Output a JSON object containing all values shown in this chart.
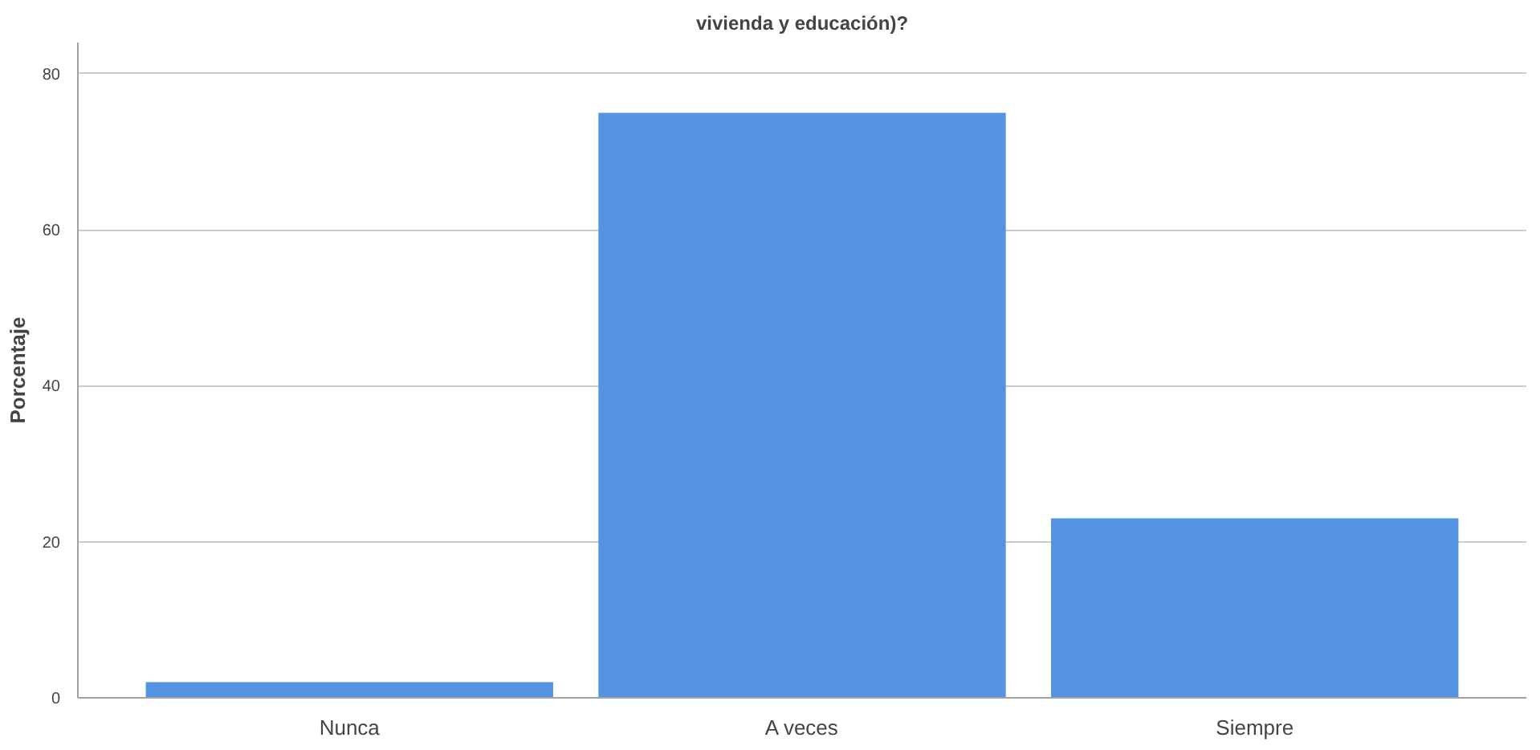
{
  "chart_data": {
    "type": "bar",
    "title": "vivienda y educación)?",
    "ylabel": "Porcentaje",
    "categories": [
      "Nunca",
      "A veces",
      "Siempre"
    ],
    "values": [
      2,
      75,
      23
    ],
    "color": "#5494e2",
    "ylim": [
      0,
      84
    ],
    "yticks": [
      0,
      20,
      40,
      60,
      80
    ],
    "grid": "y"
  }
}
